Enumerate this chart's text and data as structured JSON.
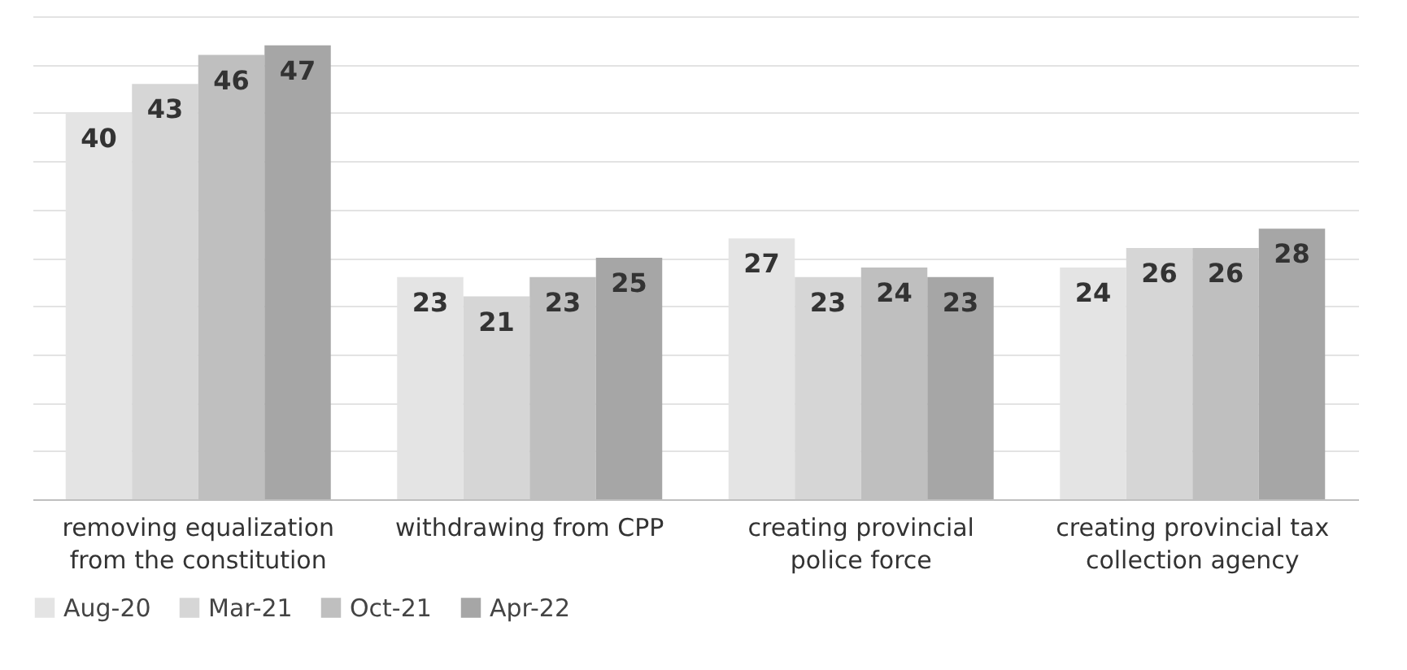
{
  "chart_data": {
    "type": "bar",
    "categories": [
      "removing equalization from the constitution",
      "withdrawing from CPP",
      "creating provincial police force",
      "creating provincial tax collection agency"
    ],
    "series": [
      {
        "name": "Aug-20",
        "color": "#e4e4e4",
        "values": [
          40,
          23,
          27,
          24
        ]
      },
      {
        "name": "Mar-21",
        "color": "#d6d6d6",
        "values": [
          43,
          21,
          23,
          26
        ]
      },
      {
        "name": "Oct-21",
        "color": "#bfbfbf",
        "values": [
          46,
          23,
          24,
          26
        ]
      },
      {
        "name": "Apr-22",
        "color": "#a6a6a6",
        "values": [
          47,
          25,
          23,
          28
        ]
      }
    ],
    "ylim": [
      0,
      50
    ],
    "yticks": [
      {
        "value": 0,
        "label": null
      },
      {
        "value": 5,
        "label": null
      },
      {
        "value": 10,
        "label": null
      },
      {
        "value": 15,
        "label": null
      },
      {
        "value": 20,
        "label": null
      },
      {
        "value": 25,
        "label": null
      },
      {
        "value": 30,
        "label": null
      },
      {
        "value": 35,
        "label": null
      },
      {
        "value": 40,
        "label": null
      },
      {
        "value": 45,
        "label": null
      },
      {
        "value": 50,
        "label": null
      }
    ],
    "tick_labels": "x",
    "grid": "y",
    "legend": "bottom",
    "data_labels": true
  }
}
